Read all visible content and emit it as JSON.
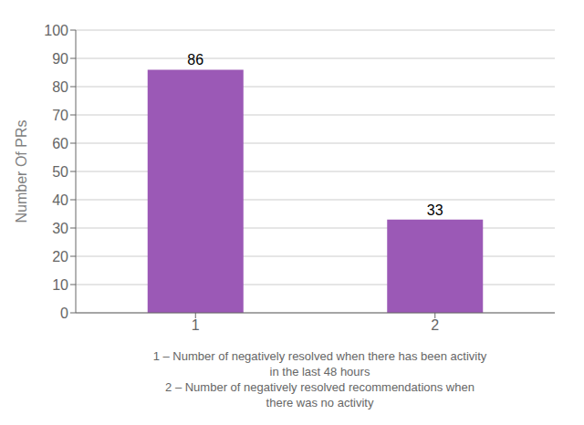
{
  "chart_data": {
    "type": "bar",
    "categories": [
      "1",
      "2"
    ],
    "values": [
      86,
      33
    ],
    "color": "#9b59b6",
    "ylabel": "Number Of PRs",
    "xlabel": "1 – Number of negatively resolved when there has been activity\nin the last 48 hours\n2 – Number of negatively resolved recommendations when\nthere was no activity",
    "ylim": [
      0,
      100
    ],
    "yticks": [
      0,
      10,
      20,
      30,
      40,
      50,
      60,
      70,
      80,
      90,
      100
    ],
    "grid": true,
    "data_labels": true
  }
}
